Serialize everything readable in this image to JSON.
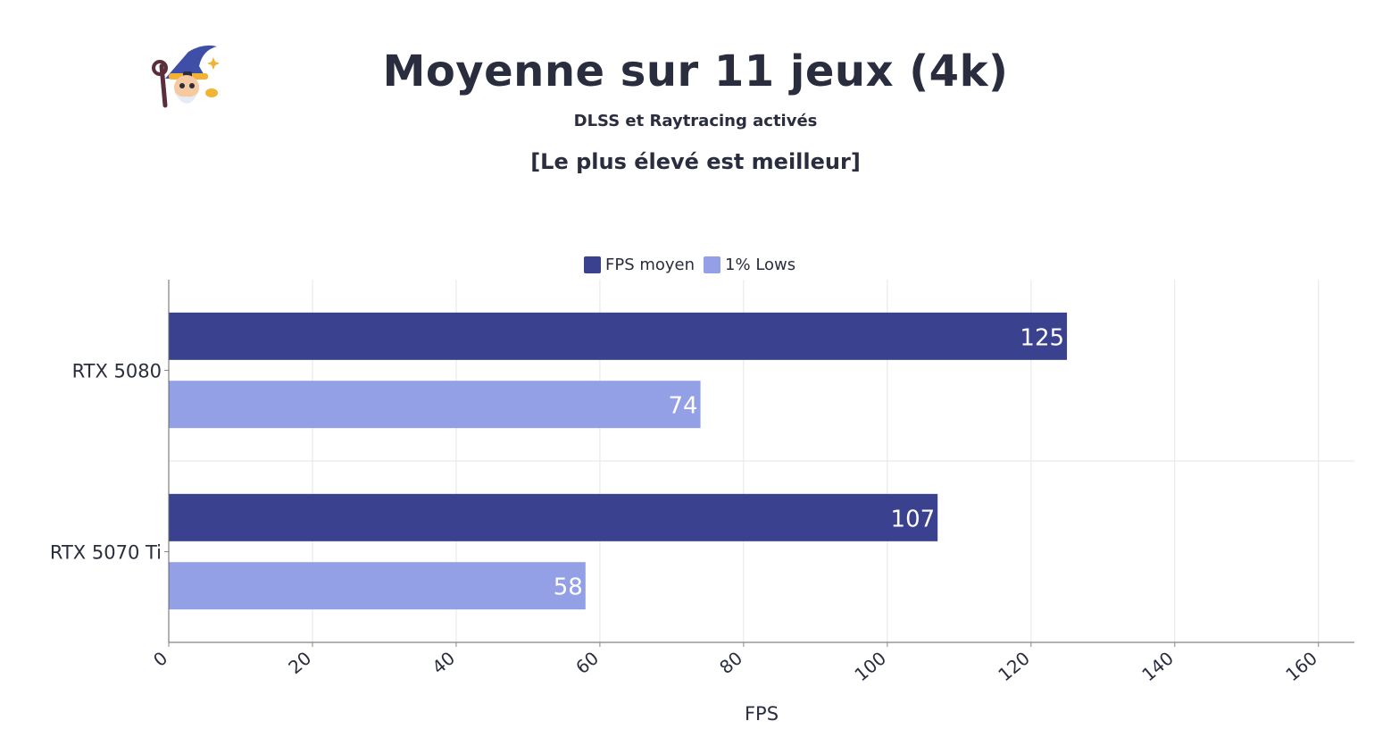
{
  "header": {
    "title": "Moyenne sur 11 jeux (4k)",
    "subtitle": "DLSS et Raytracing activés",
    "note": "[Le plus élevé est meilleur]"
  },
  "legend": {
    "items": [
      {
        "label": "FPS moyen",
        "color": "#3a418e"
      },
      {
        "label": "1% Lows",
        "color": "#94a0e6"
      }
    ]
  },
  "chart_data": {
    "type": "bar",
    "orientation": "horizontal",
    "title": "Moyenne sur 11 jeux (4k)",
    "subtitle": "DLSS et Raytracing activés",
    "categories": [
      "RTX 5080",
      "RTX 5070 Ti"
    ],
    "series": [
      {
        "name": "FPS moyen",
        "values": [
          125,
          107
        ],
        "color": "#3a418e"
      },
      {
        "name": "1% Lows",
        "values": [
          74,
          58
        ],
        "color": "#94a0e6"
      }
    ],
    "xlabel": "FPS",
    "ylabel": "",
    "xlim": [
      0,
      165
    ],
    "xticks": [
      0,
      20,
      40,
      60,
      80,
      100,
      120,
      140,
      160
    ],
    "grid": true,
    "legend_position": "top-center"
  }
}
